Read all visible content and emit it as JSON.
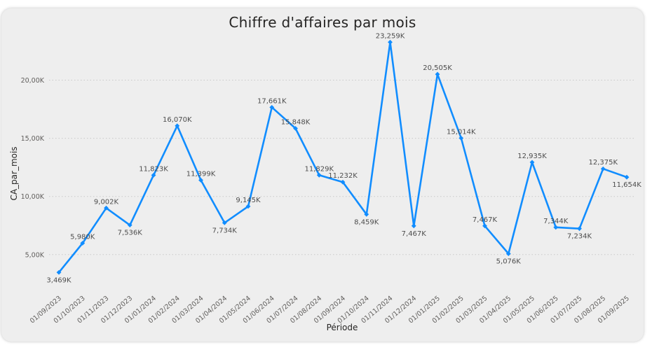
{
  "chart_data": {
    "type": "line",
    "title": "Chiffre d'affaires par mois",
    "xlabel": "Période",
    "ylabel": "CA_par_mois",
    "x": [
      "01/09/2023",
      "01/10/2023",
      "01/11/2023",
      "01/12/2023",
      "01/01/2024",
      "01/02/2024",
      "01/03/2024",
      "01/04/2024",
      "01/05/2024",
      "01/06/2024",
      "01/07/2024",
      "01/08/2024",
      "01/09/2024",
      "01/10/2024",
      "01/11/2024",
      "01/12/2024",
      "01/01/2025",
      "01/02/2025",
      "01/03/2025",
      "01/04/2025",
      "01/05/2025",
      "01/06/2025",
      "01/07/2025",
      "01/08/2025",
      "01/09/2025"
    ],
    "values": [
      3469,
      5980,
      9002,
      7536,
      11823,
      16070,
      11399,
      7734,
      9145,
      17661,
      15848,
      11829,
      11232,
      8459,
      23259,
      7467,
      20505,
      15014,
      7467,
      5076,
      12935,
      7344,
      7234,
      12375,
      11654
    ],
    "data_labels": [
      "3,469K",
      "5,980K",
      "9,002K",
      "7,536K",
      "11,823K",
      "16,070K",
      "11,399K",
      "7,734K",
      "9,145K",
      "17,661K",
      "15,848K",
      "11,829K",
      "11,232K",
      "8,459K",
      "23,259K",
      "7,467K",
      "20,505K",
      "15,014K",
      "7,467K",
      "5,076K",
      "12,935K",
      "7,344K",
      "7,234K",
      "12,375K",
      "11,654K"
    ],
    "y_ticks": [
      5000,
      10000,
      15000,
      20000
    ],
    "y_tick_labels": [
      "5,00K",
      "10,00K",
      "15,00K",
      "20,00K"
    ],
    "ylim": [
      1800,
      24600
    ],
    "grid": true,
    "line_color": "#118dff"
  }
}
